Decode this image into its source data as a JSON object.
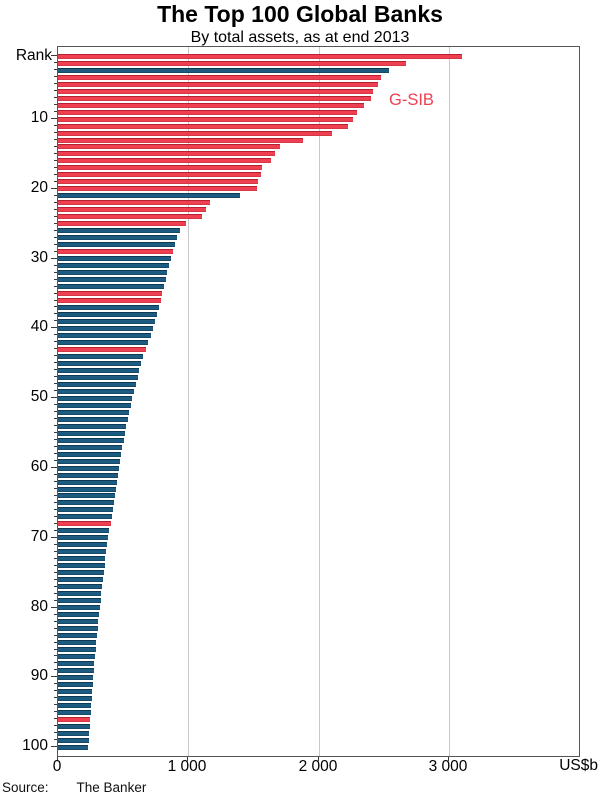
{
  "title": "The Top 100 Global Banks",
  "subtitle": "By total assets, as at end 2013",
  "legend": {
    "gsib_label": "G-SIB"
  },
  "axis": {
    "y_label": "Rank",
    "x_unit": "US$b",
    "x_tick_labels": [
      "0",
      "1 000",
      "2 000",
      "3 000"
    ],
    "x_tick_values": [
      0,
      1000,
      2000,
      3000
    ],
    "x_max": 4000,
    "y_tick_labels": [
      "10",
      "20",
      "30",
      "40",
      "50",
      "60",
      "70",
      "80",
      "90",
      "100"
    ],
    "y_tick_values": [
      10,
      20,
      30,
      40,
      50,
      60,
      70,
      80,
      90,
      100
    ]
  },
  "colors": {
    "gsib_red": "#ee4050",
    "bank_blue": "#1d5c80",
    "gridline": "#c9c9c9",
    "frame": "#565656"
  },
  "source": {
    "label": "Source:",
    "value": "The Banker"
  },
  "chart_data": {
    "type": "bar",
    "orientation": "horizontal",
    "title": "The Top 100 Global Banks",
    "subtitle": "By total assets, as at end 2013",
    "xlabel": "US$b",
    "ylabel": "Rank",
    "xlim": [
      0,
      4000
    ],
    "grid": true,
    "legend_note": "Red bars denote G-SIBs (label shown in-plot, top right of bars)",
    "categories_note": "Bank rank 1 to 100 (top to bottom)",
    "ranks": [
      1,
      2,
      3,
      4,
      5,
      6,
      7,
      8,
      9,
      10,
      11,
      12,
      13,
      14,
      15,
      16,
      17,
      18,
      19,
      20,
      21,
      22,
      23,
      24,
      25,
      26,
      27,
      28,
      29,
      30,
      31,
      32,
      33,
      34,
      35,
      36,
      37,
      38,
      39,
      40,
      41,
      42,
      43,
      44,
      45,
      46,
      47,
      48,
      49,
      50,
      51,
      52,
      53,
      54,
      55,
      56,
      57,
      58,
      59,
      60,
      61,
      62,
      63,
      64,
      65,
      66,
      67,
      68,
      69,
      70,
      71,
      72,
      73,
      74,
      75,
      76,
      77,
      78,
      79,
      80,
      81,
      82,
      83,
      84,
      85,
      86,
      87,
      88,
      89,
      90,
      91,
      92,
      93,
      94,
      95,
      96,
      97,
      98,
      99,
      100
    ],
    "values": [
      3100,
      2671,
      2538,
      2482,
      2459,
      2416,
      2405,
      2347,
      2292,
      2266,
      2226,
      2102,
      1880,
      1703,
      1669,
      1635,
      1566,
      1560,
      1536,
      1527,
      1399,
      1166,
      1138,
      1105,
      980,
      935,
      915,
      900,
      885,
      870,
      855,
      840,
      825,
      812,
      800,
      790,
      775,
      760,
      745,
      730,
      710,
      690,
      675,
      655,
      640,
      625,
      610,
      595,
      580,
      570,
      558,
      546,
      535,
      524,
      514,
      504,
      494,
      485,
      476,
      468,
      460,
      452,
      444,
      436,
      428,
      420,
      412,
      405,
      392,
      385,
      378,
      371,
      364,
      357,
      350,
      344,
      338,
      332,
      326,
      320,
      314,
      308,
      303,
      298,
      293,
      288,
      283,
      278,
      274,
      270,
      266,
      262,
      258,
      254,
      250,
      246,
      242,
      238,
      234,
      230
    ],
    "gsib_ranks": [
      1,
      2,
      4,
      5,
      6,
      7,
      8,
      9,
      10,
      11,
      12,
      13,
      14,
      15,
      16,
      17,
      18,
      19,
      20,
      22,
      23,
      24,
      25,
      29,
      35,
      36,
      43,
      68,
      96
    ]
  }
}
